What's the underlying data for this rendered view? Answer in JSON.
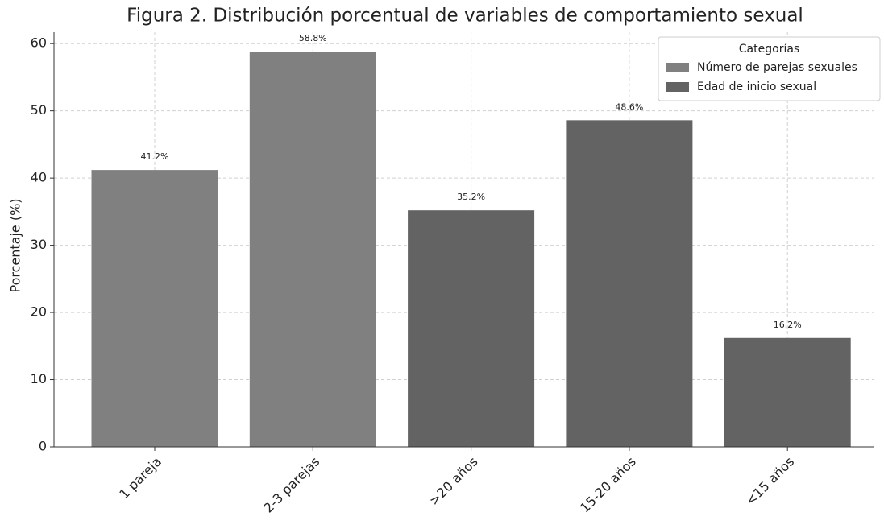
{
  "chart_data": {
    "type": "bar",
    "title": "Figura 2. Distribución porcentual de variables de comportamiento sexual",
    "y_label": "Porcentaje (%)",
    "categories": [
      "1 pareja",
      "2-3 parejas",
      ">20 años",
      "15-20 años",
      "<15 años"
    ],
    "series": [
      {
        "name": "Número de parejas sexuales",
        "color": "#808080",
        "values": [
          41.2,
          58.8,
          null,
          null,
          null
        ],
        "value_labels": [
          "41.2%",
          "58.8%",
          null,
          null,
          null
        ]
      },
      {
        "name": "Edad de inicio sexual",
        "color": "#636363",
        "values": [
          null,
          null,
          35.2,
          48.6,
          16.2
        ],
        "value_labels": [
          null,
          null,
          "35.2%",
          "48.6%",
          "16.2%"
        ]
      }
    ],
    "legend_title": "Categorías",
    "legend_position": "upper right",
    "ylim": [
      0,
      61.7
    ],
    "yticks": [
      0,
      10,
      20,
      30,
      40,
      50,
      60
    ],
    "grid": true
  }
}
